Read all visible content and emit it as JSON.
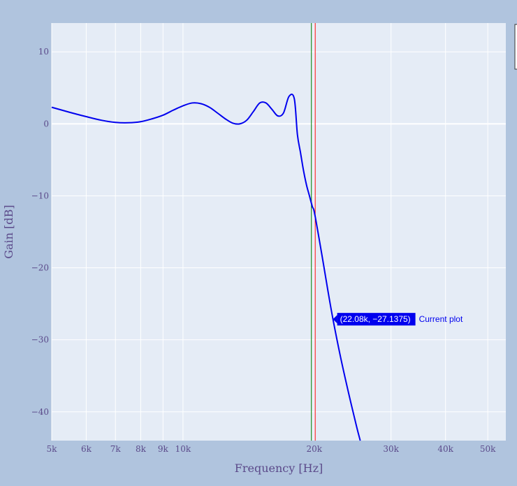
{
  "chart_data": {
    "type": "line",
    "xlabel": "Frequency [Hz]",
    "ylabel": "Gain [dB]",
    "x_scale": "log",
    "xlim": [
      5000,
      55000
    ],
    "ylim": [
      -44,
      14
    ],
    "x_ticks": [
      5000,
      6000,
      7000,
      8000,
      9000,
      10000,
      20000,
      30000,
      40000,
      50000
    ],
    "x_tick_labels": [
      "5k",
      "6k",
      "7k",
      "8k",
      "9k",
      "10k",
      "20k",
      "30k",
      "40k",
      "50k"
    ],
    "y_ticks": [
      10,
      0,
      -10,
      -20,
      -30,
      -40
    ],
    "y_tick_labels": [
      "10",
      "0",
      "−10",
      "−20",
      "−30",
      "−40"
    ],
    "grid": true,
    "series": [
      {
        "name": "Current plot",
        "color": "#0000ee",
        "x": [
          5000,
          5500,
          6000,
          6500,
          7000,
          7500,
          8000,
          8500,
          9000,
          9500,
          10000,
          10500,
          11000,
          11500,
          12000,
          12500,
          13000,
          13500,
          14000,
          14500,
          15000,
          15500,
          16000,
          16500,
          17000,
          17500,
          18000,
          18300,
          18600,
          18900,
          19200,
          19500,
          19800,
          20000,
          20500,
          21000,
          21500,
          22080,
          23000,
          24000,
          25000,
          25500
        ],
        "values": [
          2.3,
          1.6,
          1.0,
          0.5,
          0.2,
          0.15,
          0.3,
          0.7,
          1.2,
          1.9,
          2.5,
          2.9,
          2.8,
          2.3,
          1.5,
          0.7,
          0.1,
          0.0,
          0.5,
          1.7,
          2.9,
          2.9,
          2.0,
          1.1,
          1.5,
          3.8,
          3.5,
          -1.5,
          -4.0,
          -6.5,
          -8.5,
          -10.0,
          -11.5,
          -12.2,
          -15.8,
          -19.5,
          -23.2,
          -27.1375,
          -32.5,
          -37.5,
          -42.0,
          -44.0
        ]
      }
    ],
    "vertical_lines": [
      {
        "x": 19700,
        "color": "#008000"
      },
      {
        "x": 20100,
        "color": "#ff0000"
      }
    ],
    "hover": {
      "x": 22080,
      "y": -27.1375,
      "text": "(22.08k, −27.1375)",
      "name": "Current plot"
    }
  }
}
